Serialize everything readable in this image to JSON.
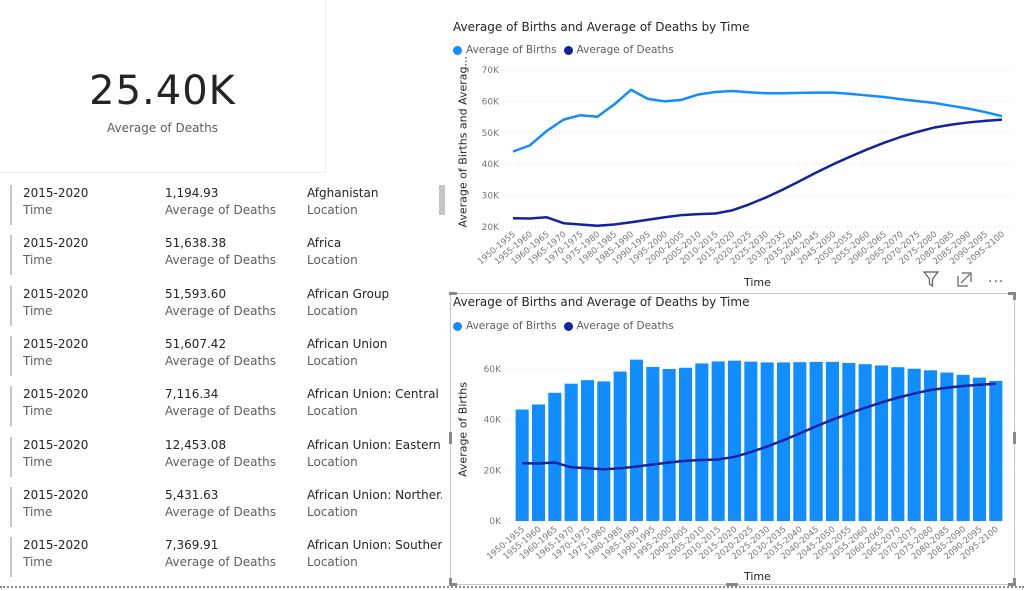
{
  "kpi": {
    "value": "25.40K",
    "label": "Average of Deaths"
  },
  "table": {
    "rows": [
      {
        "time": "2015-2020",
        "time_label": "Time",
        "deaths": "1,194.93",
        "deaths_label": "Average of Deaths",
        "location": "Afghanistan",
        "location_label": "Location"
      },
      {
        "time": "2015-2020",
        "time_label": "Time",
        "deaths": "51,638.38",
        "deaths_label": "Average of Deaths",
        "location": "Africa",
        "location_label": "Location"
      },
      {
        "time": "2015-2020",
        "time_label": "Time",
        "deaths": "51,593.60",
        "deaths_label": "Average of Deaths",
        "location": "African Group",
        "location_label": "Location"
      },
      {
        "time": "2015-2020",
        "time_label": "Time",
        "deaths": "51,607.42",
        "deaths_label": "Average of Deaths",
        "location": "African Union",
        "location_label": "Location"
      },
      {
        "time": "2015-2020",
        "time_label": "Time",
        "deaths": "7,116.34",
        "deaths_label": "Average of Deaths",
        "location": "African Union: Central ...",
        "location_label": "Location"
      },
      {
        "time": "2015-2020",
        "time_label": "Time",
        "deaths": "12,453.08",
        "deaths_label": "Average of Deaths",
        "location": "African Union: Eastern ...",
        "location_label": "Location"
      },
      {
        "time": "2015-2020",
        "time_label": "Time",
        "deaths": "5,431.63",
        "deaths_label": "Average of Deaths",
        "location": "African Union: Norther...",
        "location_label": "Location"
      },
      {
        "time": "2015-2020",
        "time_label": "Time",
        "deaths": "7,369.91",
        "deaths_label": "Average of Deaths",
        "location": "African Union: Souther...",
        "location_label": "Location"
      }
    ]
  },
  "visual_header": {
    "icons": [
      "filter-icon",
      "focus-mode-icon",
      "more-options-icon"
    ],
    "more_label": "..."
  },
  "colors": {
    "births": "#118dff",
    "deaths": "#12239e"
  },
  "chart_data": [
    {
      "type": "line",
      "title": "Average of Births and Average of Deaths by Time",
      "xlabel": "Time",
      "ylabel": "Average of Births and Averag...",
      "ylim": [
        20000,
        70000
      ],
      "yticks": [
        "20K",
        "30K",
        "40K",
        "50K",
        "60K",
        "70K"
      ],
      "ytick_values": [
        20000,
        30000,
        40000,
        50000,
        60000,
        70000
      ],
      "grid": true,
      "legend": "top-left",
      "categories": [
        "1950-1955",
        "1955-1960",
        "1960-1965",
        "1965-1970",
        "1970-1975",
        "1975-1980",
        "1980-1985",
        "1985-1990",
        "1990-1995",
        "1995-2000",
        "2000-2005",
        "2005-2010",
        "2010-2015",
        "2015-2020",
        "2020-2025",
        "2025-2030",
        "2030-2035",
        "2035-2040",
        "2040-2045",
        "2045-2050",
        "2050-2055",
        "2055-2060",
        "2060-2065",
        "2065-2070",
        "2070-2075",
        "2075-2080",
        "2080-2085",
        "2085-2090",
        "2090-2095",
        "2095-2100"
      ],
      "series": [
        {
          "name": "Average of Births",
          "values": [
            44000,
            46000,
            50600,
            54200,
            55600,
            55100,
            59000,
            63700,
            60800,
            60000,
            60500,
            62200,
            63000,
            63300,
            62900,
            62600,
            62600,
            62700,
            62800,
            62800,
            62400,
            61900,
            61400,
            60700,
            60100,
            59500,
            58600,
            57700,
            56600,
            55300
          ]
        },
        {
          "name": "Average of Deaths",
          "values": [
            22800,
            22700,
            23100,
            21200,
            20800,
            20400,
            20800,
            21500,
            22300,
            23100,
            23800,
            24100,
            24300,
            25300,
            27200,
            29400,
            31900,
            34600,
            37400,
            40000,
            42400,
            44700,
            46800,
            48700,
            50300,
            51700,
            52600,
            53300,
            53800,
            54200
          ]
        }
      ]
    },
    {
      "type": "bar",
      "title": "Average of Births and Average of Deaths by Time",
      "xlabel": "Time",
      "ylabel": "Average of Births",
      "ylim": [
        0,
        65000
      ],
      "yticks": [
        "0K",
        "20K",
        "40K",
        "60K"
      ],
      "ytick_values": [
        0,
        20000,
        40000,
        60000
      ],
      "grid": true,
      "legend": "top-left",
      "categories": [
        "1950-1955",
        "1955-1960",
        "1960-1965",
        "1965-1970",
        "1970-1975",
        "1975-1980",
        "1980-1985",
        "1985-1990",
        "1990-1995",
        "1995-2000",
        "2000-2005",
        "2005-2010",
        "2010-2015",
        "2015-2020",
        "2020-2025",
        "2025-2030",
        "2030-2035",
        "2035-2040",
        "2040-2045",
        "2045-2050",
        "2050-2055",
        "2055-2060",
        "2060-2065",
        "2065-2070",
        "2070-2075",
        "2075-2080",
        "2080-2085",
        "2085-2090",
        "2090-2095",
        "2095-2100"
      ],
      "series": [
        {
          "name": "Average of Births",
          "kind": "bar",
          "values": [
            44000,
            46000,
            50600,
            54200,
            55600,
            55100,
            59000,
            63700,
            60800,
            60000,
            60500,
            62200,
            63000,
            63300,
            62900,
            62600,
            62600,
            62700,
            62800,
            62800,
            62400,
            61900,
            61400,
            60700,
            60100,
            59500,
            58600,
            57700,
            56600,
            55300
          ]
        },
        {
          "name": "Average of Deaths",
          "kind": "line",
          "values": [
            22800,
            22700,
            23100,
            21200,
            20800,
            20400,
            20800,
            21500,
            22300,
            23100,
            23800,
            24100,
            24300,
            25300,
            27200,
            29400,
            31900,
            34600,
            37400,
            40000,
            42400,
            44700,
            46800,
            48700,
            50300,
            51700,
            52600,
            53300,
            53800,
            54200
          ]
        }
      ]
    }
  ]
}
